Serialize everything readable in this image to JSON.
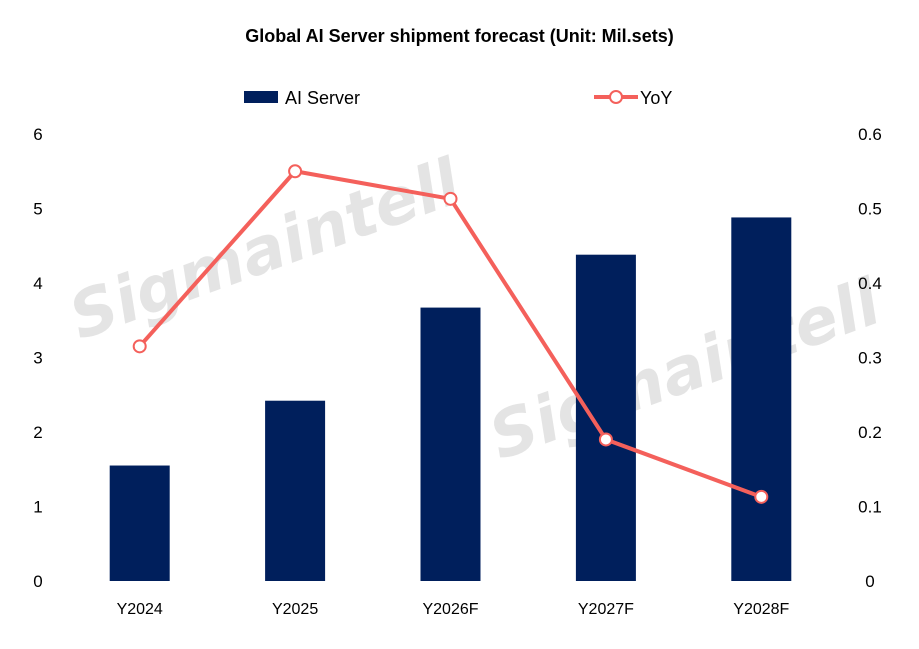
{
  "chart_data": {
    "type": "bar",
    "title": "Global AI Server shipment forecast (Unit: Mil.sets)",
    "categories": [
      "Y2024",
      "Y2025",
      "Y2026F",
      "Y2027F",
      "Y2028F"
    ],
    "series": [
      {
        "name": "AI Server",
        "type": "bar",
        "axis": "left",
        "color": "#001f5c",
        "values": [
          1.55,
          2.42,
          3.67,
          4.38,
          4.88
        ]
      },
      {
        "name": "YoY",
        "type": "line",
        "axis": "right",
        "color": "#f4605b",
        "values": [
          0.315,
          0.55,
          0.513,
          0.19,
          0.113
        ]
      }
    ],
    "y_left": {
      "min": 0,
      "max": 6,
      "ticks": [
        "0",
        "1",
        "2",
        "3",
        "4",
        "5",
        "6"
      ]
    },
    "y_right": {
      "min": 0,
      "max": 0.6,
      "ticks": [
        "0",
        "0.1",
        "0.2",
        "0.3",
        "0.4",
        "0.5",
        "0.6"
      ]
    },
    "legend_position": "top",
    "grid": false
  },
  "watermark": "Sigmaintell"
}
